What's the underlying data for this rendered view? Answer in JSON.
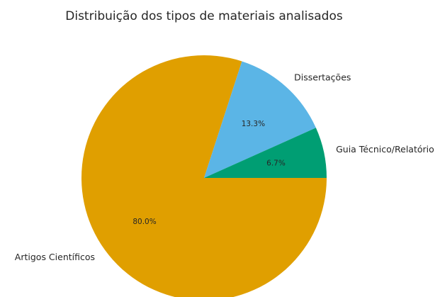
{
  "chart_data": {
    "type": "pie",
    "title": "Distribuição dos tipos de materiais analisados",
    "categories": [
      "Artigos Científicos",
      "Dissertações",
      "Guia Técnico/Relatório"
    ],
    "values": [
      80.0,
      13.3,
      6.7
    ],
    "percent_labels": [
      "80.0%",
      "13.3%",
      "6.7%"
    ],
    "colors": [
      "#E09F00",
      "#5BB5E6",
      "#009E73"
    ],
    "start_angle_deg": 0,
    "direction": "clockwise"
  }
}
